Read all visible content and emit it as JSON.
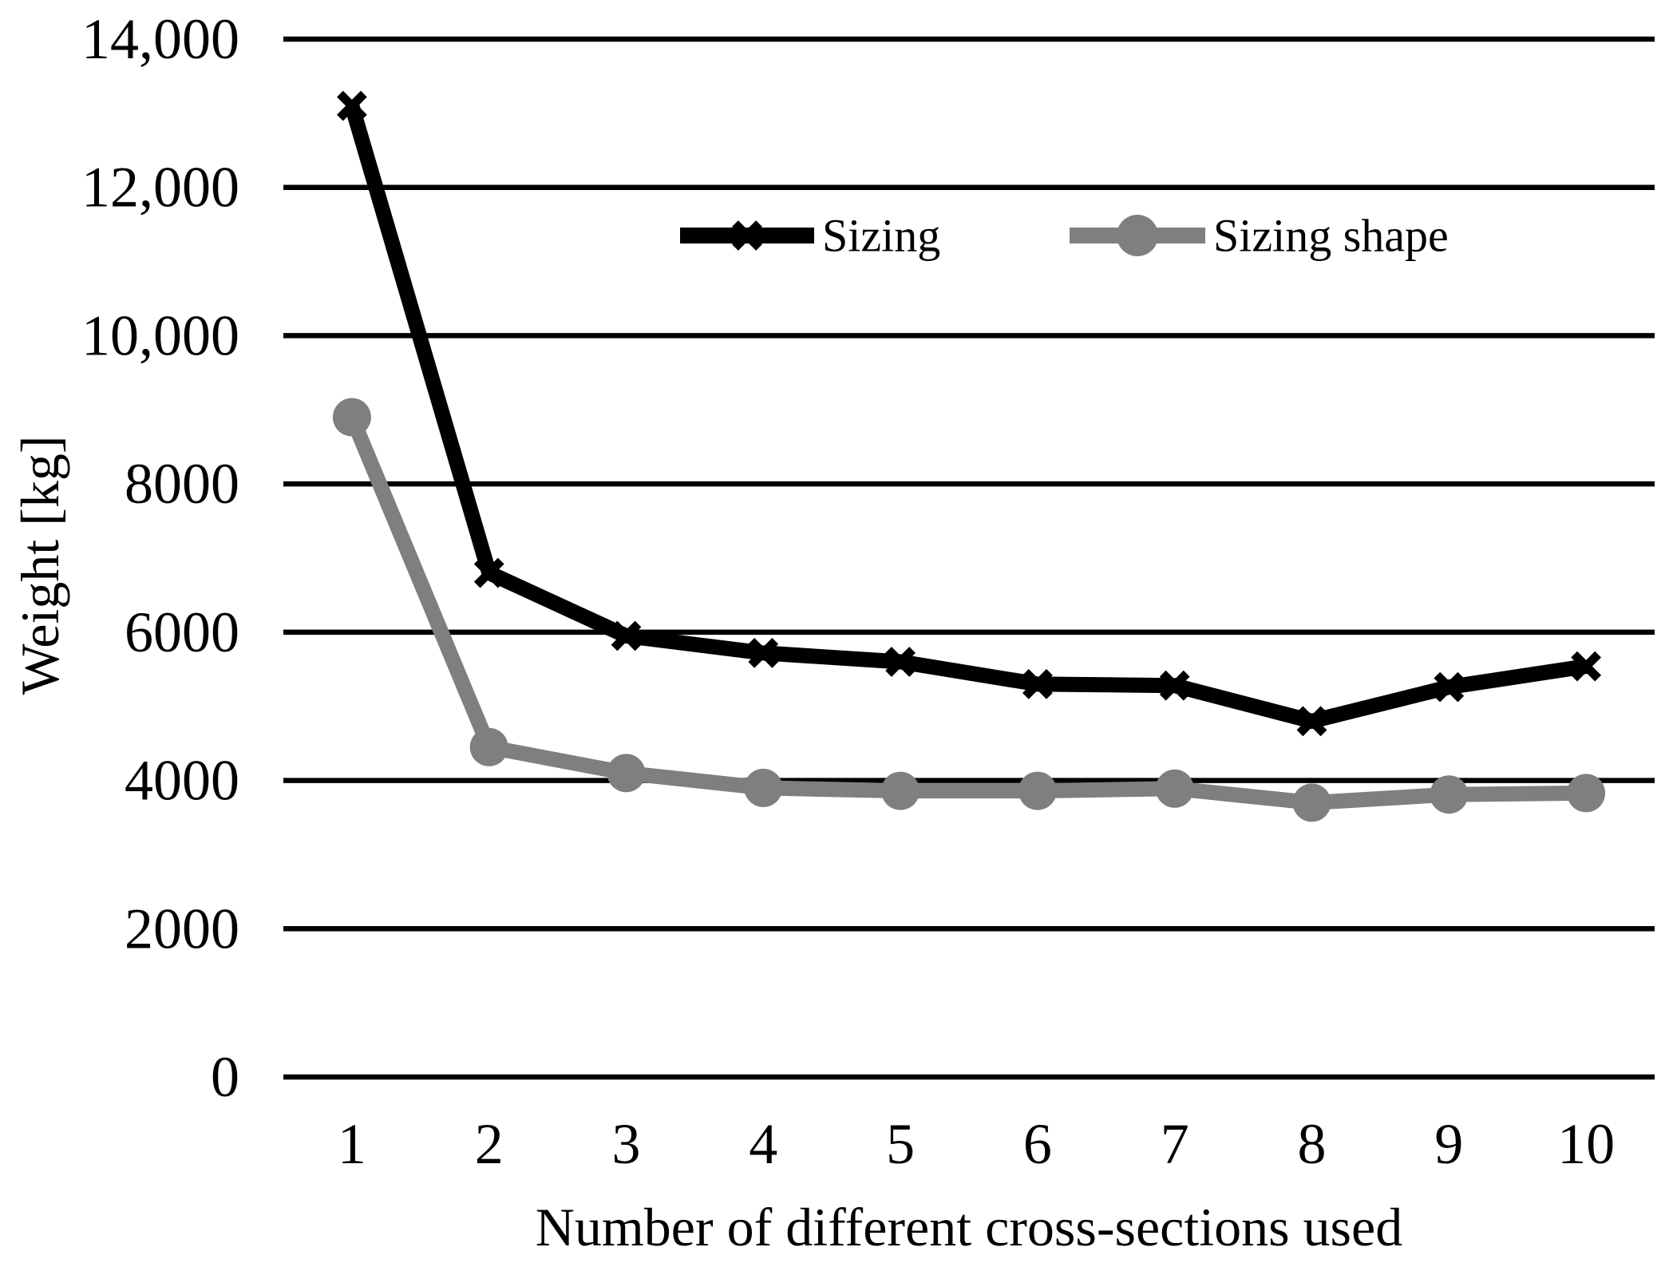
{
  "chart_data": {
    "type": "line",
    "title": "",
    "xlabel": "Number of different cross-sections used",
    "ylabel": "Weight [kg]",
    "categories": [
      "1",
      "2",
      "3",
      "4",
      "5",
      "6",
      "7",
      "8",
      "9",
      "10"
    ],
    "x": [
      1,
      2,
      3,
      4,
      5,
      6,
      7,
      8,
      9,
      10
    ],
    "ylim": [
      0,
      14000
    ],
    "ytick_values": [
      0,
      2000,
      4000,
      6000,
      8000,
      10000,
      12000,
      14000
    ],
    "ytick_labels": [
      "0",
      "2000",
      "4000",
      "6000",
      "8000",
      "10,000",
      "12,000",
      "14,000"
    ],
    "grid": "horizontal-only",
    "grid_color": "#000000",
    "background_color": "#FFFFFF",
    "legend": {
      "position": "inside-top-center",
      "border": false
    },
    "series": [
      {
        "name": "Sizing",
        "color": "#000000",
        "marker": "x",
        "line_width": 19,
        "values": [
          13100,
          6800,
          5950,
          5720,
          5600,
          5300,
          5280,
          4800,
          5260,
          5540
        ]
      },
      {
        "name": "Sizing shape",
        "color": "#7F7F7F",
        "marker": "circle",
        "line_width": 19,
        "values": [
          8900,
          4450,
          4100,
          3900,
          3860,
          3860,
          3890,
          3700,
          3810,
          3830
        ]
      }
    ]
  }
}
